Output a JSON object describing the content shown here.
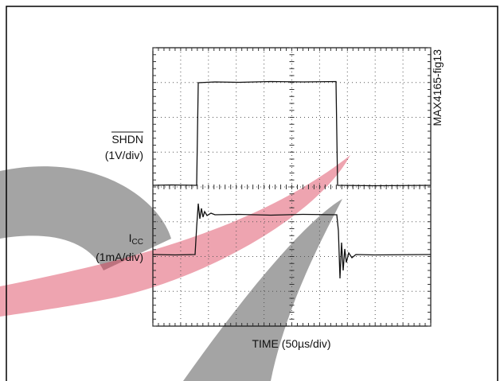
{
  "figure": {
    "shdn_label": "SHDN",
    "shdn_scale": "(1V/div)",
    "icc_label": "I",
    "icc_subscript": "CC",
    "icc_scale": "(1mA/div)",
    "x_label": "TIME (50µs/div)",
    "figure_id": "MAX4165-fig13"
  }
}
